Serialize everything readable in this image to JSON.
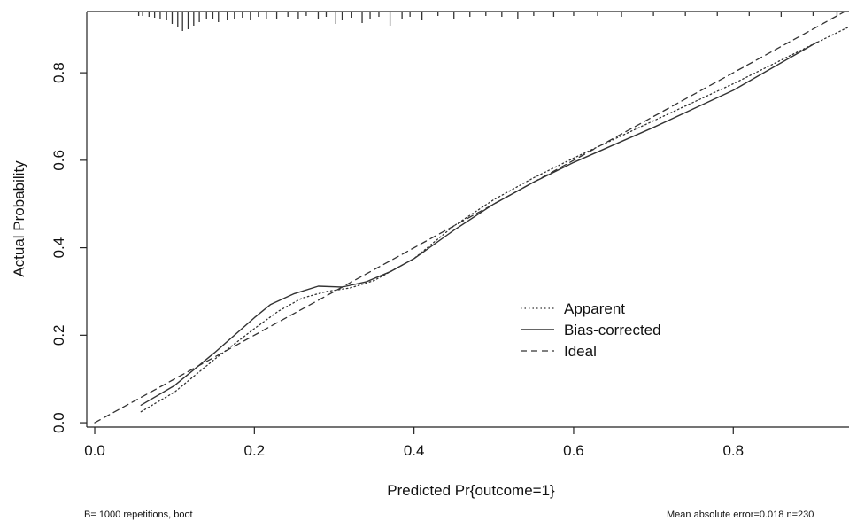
{
  "chart_data": {
    "type": "line",
    "title": "",
    "xlabel": "Predicted Pr{outcome=1}",
    "ylabel": "Actual Probability",
    "xlim": [
      -0.01,
      0.945
    ],
    "ylim": [
      -0.01,
      0.94
    ],
    "x_ticks": [
      "0.0",
      "0.2",
      "0.4",
      "0.6",
      "0.8"
    ],
    "y_ticks": [
      "0.0",
      "0.2",
      "0.4",
      "0.6",
      "0.8"
    ],
    "grid": false,
    "legend_position": "center-right",
    "series": [
      {
        "name": "Apparent",
        "style": "dotted",
        "x": [
          0.058,
          0.1,
          0.15,
          0.2,
          0.23,
          0.26,
          0.29,
          0.32,
          0.35,
          0.4,
          0.45,
          0.5,
          0.55,
          0.6,
          0.7,
          0.8,
          0.9,
          0.945
        ],
        "y": [
          0.025,
          0.07,
          0.145,
          0.215,
          0.255,
          0.285,
          0.3,
          0.308,
          0.325,
          0.375,
          0.45,
          0.51,
          0.56,
          0.605,
          0.69,
          0.775,
          0.865,
          0.905
        ]
      },
      {
        "name": "Bias-corrected",
        "style": "solid",
        "x": [
          0.058,
          0.1,
          0.15,
          0.2,
          0.22,
          0.25,
          0.28,
          0.31,
          0.34,
          0.37,
          0.4,
          0.45,
          0.5,
          0.55,
          0.6,
          0.7,
          0.8,
          0.905
        ],
        "y": [
          0.04,
          0.085,
          0.16,
          0.24,
          0.27,
          0.295,
          0.312,
          0.31,
          0.322,
          0.345,
          0.375,
          0.44,
          0.5,
          0.55,
          0.595,
          0.675,
          0.76,
          0.87
        ]
      },
      {
        "name": "Ideal",
        "style": "dashed",
        "x": [
          0,
          0.945
        ],
        "y": [
          0,
          0.945
        ]
      }
    ],
    "rug_x": [
      0.055,
      0.06,
      0.068,
      0.075,
      0.082,
      0.09,
      0.097,
      0.104,
      0.11,
      0.117,
      0.124,
      0.131,
      0.14,
      0.148,
      0.155,
      0.166,
      0.175,
      0.185,
      0.195,
      0.205,
      0.215,
      0.228,
      0.242,
      0.255,
      0.265,
      0.28,
      0.29,
      0.302,
      0.31,
      0.322,
      0.335,
      0.345,
      0.356,
      0.37,
      0.385,
      0.395,
      0.41,
      0.43,
      0.45,
      0.47,
      0.49,
      0.51,
      0.53,
      0.55,
      0.575,
      0.6,
      0.63,
      0.66,
      0.7,
      0.74,
      0.78,
      0.82,
      0.86,
      0.9,
      0.93
    ],
    "rug_len": [
      5,
      5,
      6,
      7,
      9,
      10,
      14,
      18,
      22,
      20,
      16,
      12,
      9,
      9,
      12,
      10,
      8,
      7,
      10,
      6,
      9,
      8,
      6,
      9,
      5,
      8,
      6,
      14,
      10,
      7,
      13,
      9,
      6,
      16,
      8,
      6,
      10,
      5,
      8,
      6,
      5,
      6,
      8,
      5,
      6,
      5,
      5,
      6,
      5,
      5,
      5,
      5,
      6,
      5,
      5
    ],
    "footnotes": {
      "left": "B= 1000 repetitions, boot",
      "right": "Mean absolute error=0.018 n=230"
    }
  }
}
